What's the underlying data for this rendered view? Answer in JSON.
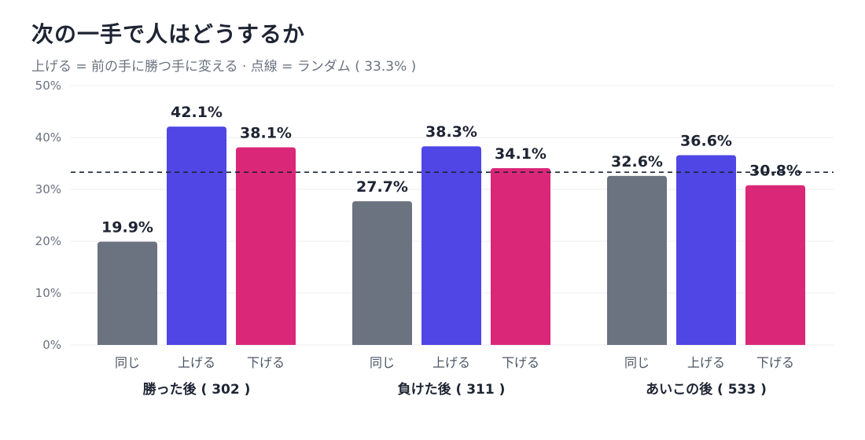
{
  "chart_data": {
    "type": "bar",
    "title": "次の一手で人はどうするか",
    "subtitle": "上げる = 前の手に勝つ手に変える · 点線 = ランダム ( 33.3% )",
    "groups": [
      "勝った後 ( 302 )",
      "負けた後 ( 311 )",
      "あいこの後 ( 533 )"
    ],
    "categories": [
      "同じ",
      "上げる",
      "下げる"
    ],
    "series": [
      {
        "values": [
          19.9,
          42.1,
          38.1
        ],
        "labels": [
          "19.9%",
          "42.1%",
          "38.1%"
        ]
      },
      {
        "values": [
          27.7,
          38.3,
          34.1
        ],
        "labels": [
          "27.7%",
          "38.3%",
          "34.1%"
        ]
      },
      {
        "values": [
          32.6,
          36.6,
          30.8
        ],
        "labels": [
          "32.6%",
          "36.6%",
          "30.8%"
        ]
      }
    ],
    "colors": [
      "#6b7280",
      "#4f46e5",
      "#db2777"
    ],
    "ylim": [
      0,
      50
    ],
    "yticks": [
      0,
      10,
      20,
      30,
      40,
      50
    ],
    "ytick_labels": [
      "0%",
      "10%",
      "20%",
      "30%",
      "40%",
      "50%"
    ],
    "reference_line": 33.3,
    "grid": true
  }
}
